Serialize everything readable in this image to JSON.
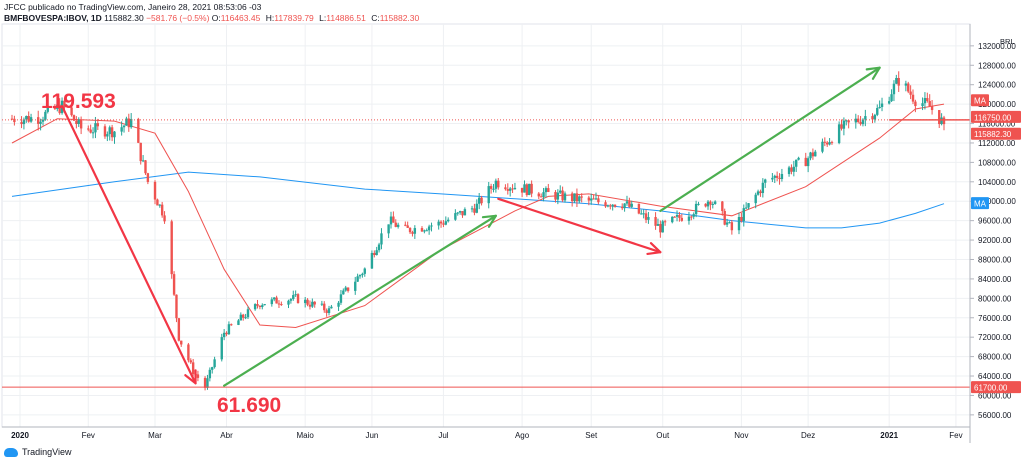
{
  "header": {
    "line1": "JFCC publicado no TradingView.com, Janeiro 28, 2021 08:53:06 -03",
    "symbol": "BMFBOVESPA:IBOV, 1D",
    "last": "115882.30",
    "change": "−581.76 (−0.5%)",
    "o_label": "O:",
    "o_value": "116463.45",
    "h_label": "H:",
    "h_value": "117839.79",
    "l_label": "L:",
    "l_value": "114886.51",
    "c_label": "C:",
    "c_value": "115882.30"
  },
  "footer": {
    "brand": "TradingView"
  },
  "annotations": {
    "high_label": "119.593",
    "low_label": "61.690"
  },
  "badges": {
    "ma_red": "MA",
    "price_line": "116750.00",
    "last_price": "115882.30",
    "ma_blue": "MA",
    "low_line": "61700.00",
    "currency": "BRL"
  },
  "colors": {
    "up": "#26a69a",
    "down": "#ef5350",
    "ma_short": "#ef5350",
    "ma_long": "#2196f3",
    "arrow_down": "#f23645",
    "arrow_up": "#4caf50",
    "grid": "#eef0f3",
    "label_red": "#f23645"
  },
  "chart_data": {
    "type": "candlestick",
    "title": "BMFBOVESPA:IBOV, 1D",
    "x_ticks": [
      "2020",
      "Fev",
      "Mar",
      "Abr",
      "Maio",
      "Jun",
      "Jul",
      "Ago",
      "Set",
      "Out",
      "Nov",
      "Dez",
      "2021",
      "Fev"
    ],
    "y_ticks": [
      56000,
      60000,
      64000,
      68000,
      72000,
      76000,
      80000,
      84000,
      88000,
      92000,
      96000,
      100000,
      104000,
      108000,
      112000,
      116000,
      120000,
      124000,
      128000,
      132000
    ],
    "ylim": [
      53500,
      136500
    ],
    "grid": true,
    "price_path": [
      [
        "2020-01-02",
        117000
      ],
      [
        "2020-01-13",
        117200
      ],
      [
        "2020-01-23",
        119593
      ],
      [
        "2020-01-31",
        115000
      ],
      [
        "2020-02-14",
        114500
      ],
      [
        "2020-02-21",
        116500
      ],
      [
        "2020-02-28",
        104000
      ],
      [
        "2020-03-06",
        97000
      ],
      [
        "2020-03-12",
        72000
      ],
      [
        "2020-03-18",
        65000
      ],
      [
        "2020-03-23",
        61690
      ],
      [
        "2020-03-31",
        73000
      ],
      [
        "2020-04-15",
        79000
      ],
      [
        "2020-04-30",
        80000
      ],
      [
        "2020-05-14",
        77500
      ],
      [
        "2020-05-29",
        86000
      ],
      [
        "2020-06-08",
        96000
      ],
      [
        "2020-06-15",
        94000
      ],
      [
        "2020-06-30",
        95500
      ],
      [
        "2020-07-15",
        99000
      ],
      [
        "2020-07-23",
        104000
      ],
      [
        "2020-07-31",
        103000
      ],
      [
        "2020-08-14",
        101500
      ],
      [
        "2020-08-31",
        100000
      ],
      [
        "2020-09-15",
        99500
      ],
      [
        "2020-09-30",
        94500
      ],
      [
        "2020-10-15",
        98500
      ],
      [
        "2020-10-21",
        100500
      ],
      [
        "2020-10-30",
        94000
      ],
      [
        "2020-11-13",
        104000
      ],
      [
        "2020-11-30",
        108500
      ],
      [
        "2020-12-15",
        115000
      ],
      [
        "2020-12-31",
        119000
      ],
      [
        "2021-01-08",
        125000
      ],
      [
        "2021-01-15",
        121000
      ],
      [
        "2021-01-21",
        119500
      ],
      [
        "2021-01-27",
        115882.3
      ]
    ],
    "series": [
      {
        "name": "MA",
        "color": "#ef5350",
        "points": [
          [
            "2020-01-02",
            112000
          ],
          [
            "2020-01-21",
            117000
          ],
          [
            "2020-02-14",
            116500
          ],
          [
            "2020-03-02",
            114000
          ],
          [
            "2020-03-16",
            102000
          ],
          [
            "2020-03-31",
            86000
          ],
          [
            "2020-04-15",
            74500
          ],
          [
            "2020-04-30",
            74000
          ],
          [
            "2020-05-29",
            78500
          ],
          [
            "2020-06-30",
            90000
          ],
          [
            "2020-07-31",
            98000
          ],
          [
            "2020-08-14",
            101000
          ],
          [
            "2020-08-31",
            101500
          ],
          [
            "2020-09-30",
            99000
          ],
          [
            "2020-10-30",
            97000
          ],
          [
            "2020-11-30",
            103000
          ],
          [
            "2020-12-31",
            113000
          ],
          [
            "2021-01-15",
            119000
          ],
          [
            "2021-01-27",
            120000
          ]
        ]
      },
      {
        "name": "MA",
        "color": "#2196f3",
        "points": [
          [
            "2020-01-02",
            101000
          ],
          [
            "2020-02-14",
            104000
          ],
          [
            "2020-03-16",
            106000
          ],
          [
            "2020-04-15",
            105000
          ],
          [
            "2020-05-29",
            102500
          ],
          [
            "2020-06-30",
            101500
          ],
          [
            "2020-07-31",
            100500
          ],
          [
            "2020-08-31",
            99500
          ],
          [
            "2020-09-30",
            98000
          ],
          [
            "2020-10-30",
            96000
          ],
          [
            "2020-11-30",
            94500
          ],
          [
            "2020-12-15",
            94500
          ],
          [
            "2020-12-31",
            95500
          ],
          [
            "2021-01-15",
            97500
          ],
          [
            "2021-01-27",
            99500
          ]
        ]
      }
    ],
    "horizontal_lines": [
      {
        "value": 116750.0,
        "style": "dotted",
        "color": "#ef5350"
      },
      {
        "value": 61700.0,
        "style": "solid",
        "color": "#ef5350"
      }
    ],
    "arrows": [
      {
        "from": [
          "2020-01-23",
          119593
        ],
        "to": [
          "2020-03-19",
          62500
        ],
        "color": "#f23645"
      },
      {
        "from": [
          "2020-03-31",
          62000
        ],
        "to": [
          "2020-07-23",
          97000
        ],
        "color": "#4caf50"
      },
      {
        "from": [
          "2020-07-24",
          100500
        ],
        "to": [
          "2020-09-30",
          89500
        ],
        "color": "#f23645"
      },
      {
        "from": [
          "2020-09-30",
          98000
        ],
        "to": [
          "2020-12-31",
          127500
        ],
        "color": "#4caf50"
      }
    ],
    "last_close": 115882.3
  }
}
